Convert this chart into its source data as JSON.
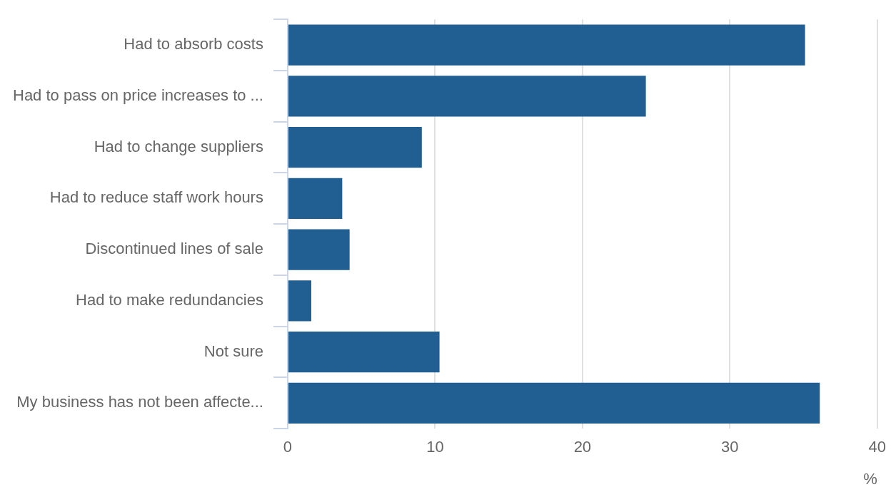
{
  "chart_data": {
    "type": "bar",
    "orientation": "horizontal",
    "xlabel": "%",
    "categories": [
      "Had to absorb costs",
      "Had to pass on price increases to ...",
      "Had to change suppliers",
      "Had to reduce staff work hours",
      "Discontinued lines of sale",
      "Had to make redundancies",
      "Not sure",
      "My business has not been affecte..."
    ],
    "values": [
      35.1,
      24.3,
      9.1,
      3.7,
      4.2,
      1.6,
      10.3,
      36.1
    ],
    "color": "#215f93",
    "xlim": [
      0,
      40
    ],
    "xticks": [
      0,
      10,
      20,
      30,
      40
    ],
    "grid": "x",
    "legend": false
  }
}
